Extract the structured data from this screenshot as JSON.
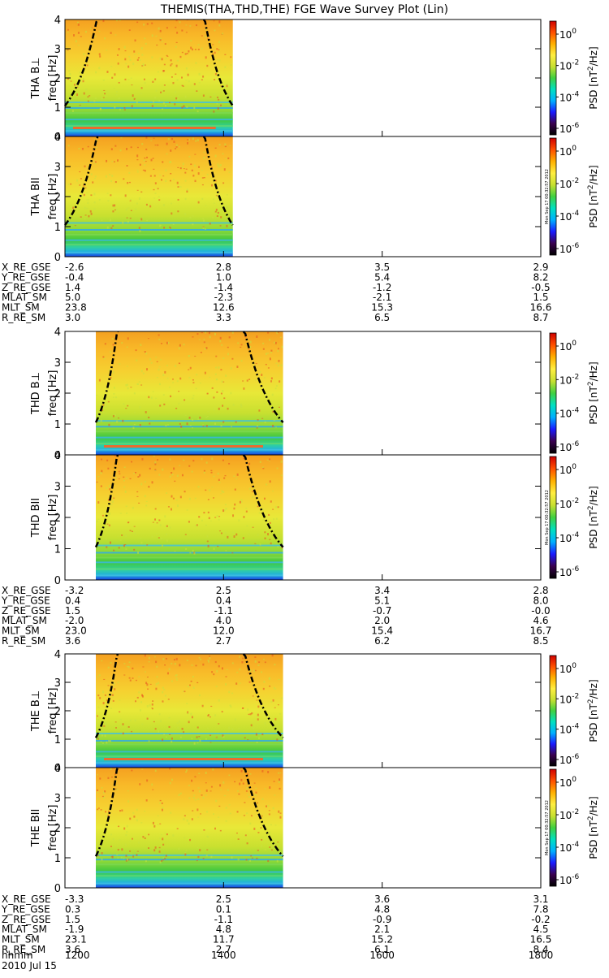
{
  "title": "THEMIS(THA,THD,THE) FGE Wave Survey Plot (Lin)",
  "chart_data": {
    "type": "heatmap",
    "title": "THEMIS(THA,THD,THE) FGE Wave Survey Plot (Lin)",
    "xlabel": "hhmm",
    "date_label": "2010 Jul 15",
    "x_ticks": [
      "1200",
      "1400",
      "1600",
      "1800"
    ],
    "xlim": [
      "1200",
      "1800"
    ],
    "ylim": [
      0,
      4
    ],
    "y_ticks": [
      "0",
      "1",
      "2",
      "3",
      "4"
    ],
    "y_unit_label": "freq [Hz]",
    "colorbar": {
      "label": "PSD [nT²/Hz]",
      "label_main": "PSD [nT",
      "label_exp": "2",
      "label_tail": "/Hz]",
      "tick_base": "10",
      "tick_exponents": [
        "0",
        "-2",
        "-4",
        "-6"
      ],
      "scale": "log",
      "colors": [
        "#000000",
        "#3a0050",
        "#1a1aff",
        "#00b0ff",
        "#00e0c0",
        "#40d040",
        "#c8e030",
        "#ffee40",
        "#ffb000",
        "#ff5000",
        "#d00000"
      ]
    },
    "timestamp": "Mon Sep 17 00:32:57 2012",
    "spacecraft": [
      {
        "name": "THA",
        "panels": [
          {
            "label": "THA B⊥",
            "ylabel": "freq [Hz]",
            "data_end": "1407",
            "cyclotron_dips": [
              "1225",
              "1345"
            ]
          },
          {
            "label": "THA BII",
            "ylabel": "freq [Hz]",
            "data_end": "1407",
            "cyclotron_dips": [
              "1225",
              "1345"
            ]
          }
        ],
        "ephemeris": [
          {
            "name": "X_RE_GSE",
            "values": [
              "-2.6",
              "2.8",
              "3.5",
              "2.9"
            ]
          },
          {
            "name": "Y_RE_GSE",
            "values": [
              "-0.4",
              "1.0",
              "5.4",
              "8.2"
            ]
          },
          {
            "name": "Z_RE_GSE",
            "values": [
              "1.4",
              "-1.4",
              "-1.2",
              "-0.5"
            ]
          },
          {
            "name": "MLAT_SM",
            "values": [
              "5.0",
              "-2.3",
              "-2.1",
              "1.5"
            ]
          },
          {
            "name": "MLT_SM",
            "values": [
              "23.8",
              "12.6",
              "15.3",
              "16.6"
            ]
          },
          {
            "name": "R_RE_SM",
            "values": [
              "3.0",
              "3.3",
              "6.5",
              "8.7"
            ]
          }
        ]
      },
      {
        "name": "THD",
        "panels": [
          {
            "label": "THD B⊥",
            "ylabel": "freq [Hz]",
            "data_end": "1445",
            "cyclotron_dips": [
              "1240",
              "1415"
            ]
          },
          {
            "label": "THD BII",
            "ylabel": "freq [Hz]",
            "data_end": "1445",
            "cyclotron_dips": [
              "1240",
              "1415"
            ]
          }
        ],
        "ephemeris": [
          {
            "name": "X_RE_GSE",
            "values": [
              "-3.2",
              "2.5",
              "3.4",
              "2.8"
            ]
          },
          {
            "name": "Y_RE_GSE",
            "values": [
              "0.4",
              "0.4",
              "5.1",
              "8.0"
            ]
          },
          {
            "name": "Z_RE_GSE",
            "values": [
              "1.5",
              "-1.1",
              "-0.7",
              "-0.0"
            ]
          },
          {
            "name": "MLAT_SM",
            "values": [
              "-2.0",
              "4.0",
              "2.0",
              "4.6"
            ]
          },
          {
            "name": "MLT_SM",
            "values": [
              "23.0",
              "12.0",
              "15.4",
              "16.7"
            ]
          },
          {
            "name": "R_RE_SM",
            "values": [
              "3.6",
              "2.7",
              "6.2",
              "8.5"
            ]
          }
        ]
      },
      {
        "name": "THE",
        "panels": [
          {
            "label": "THE B⊥",
            "ylabel": "freq [Hz]",
            "data_end": "1445",
            "cyclotron_dips": [
              "1240",
              "1415"
            ]
          },
          {
            "label": "THE BII",
            "ylabel": "freq [Hz]",
            "data_end": "1445",
            "cyclotron_dips": [
              "1240",
              "1415"
            ]
          }
        ],
        "ephemeris": [
          {
            "name": "X_RE_GSE",
            "values": [
              "-3.3",
              "2.5",
              "3.6",
              "3.1"
            ]
          },
          {
            "name": "Y_RE_GSE",
            "values": [
              "0.3",
              "0.1",
              "4.8",
              "7.8"
            ]
          },
          {
            "name": "Z_RE_GSE",
            "values": [
              "1.5",
              "-1.1",
              "-0.9",
              "-0.2"
            ]
          },
          {
            "name": "MLAT_SM",
            "values": [
              "-1.9",
              "4.8",
              "2.1",
              "4.5"
            ]
          },
          {
            "name": "MLT_SM",
            "values": [
              "23.1",
              "11.7",
              "15.2",
              "16.5"
            ]
          },
          {
            "name": "R_RE_SM",
            "values": [
              "3.6",
              "2.7",
              "6.1",
              "8.4"
            ]
          }
        ]
      }
    ]
  }
}
